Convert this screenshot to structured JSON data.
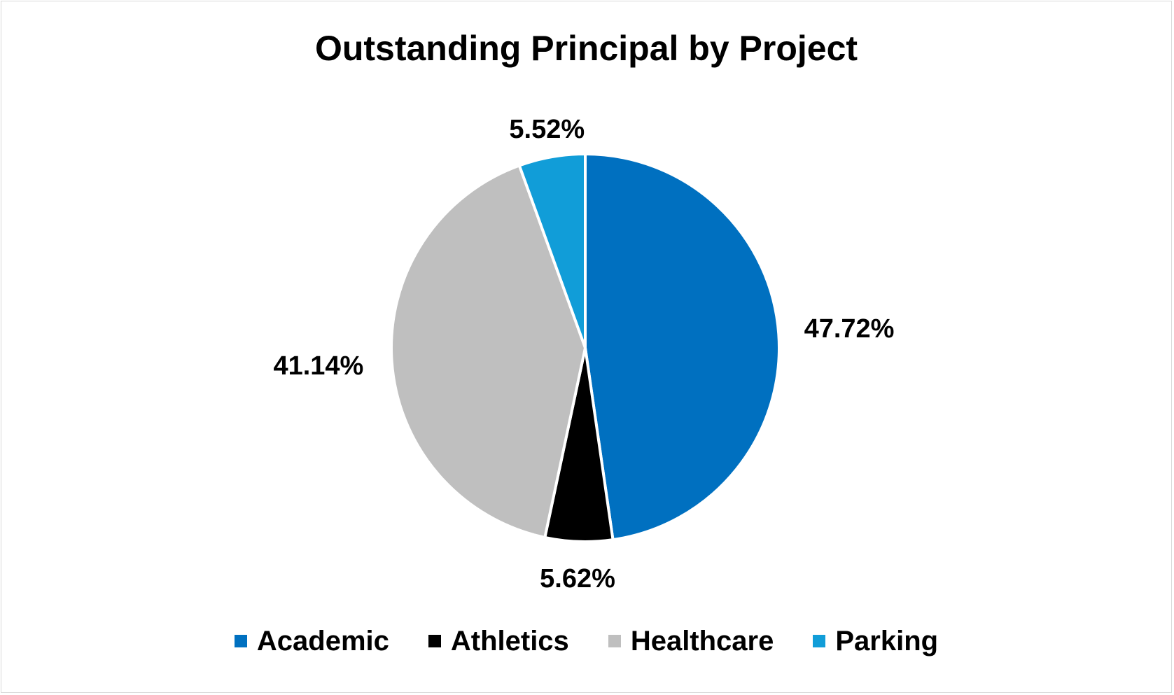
{
  "chart_data": {
    "type": "pie",
    "title": "Outstanding Principal by Project",
    "categories": [
      "Academic",
      "Athletics",
      "Healthcare",
      "Parking"
    ],
    "values": [
      47.72,
      5.62,
      41.14,
      5.52
    ],
    "labels": [
      "47.72%",
      "5.62%",
      "41.14%",
      "5.52%"
    ],
    "colors": [
      "#0070C0",
      "#000000",
      "#BFBFBF",
      "#119DD8"
    ],
    "start_angle_deg": 0,
    "direction": "clockwise",
    "legend_position": "bottom"
  }
}
